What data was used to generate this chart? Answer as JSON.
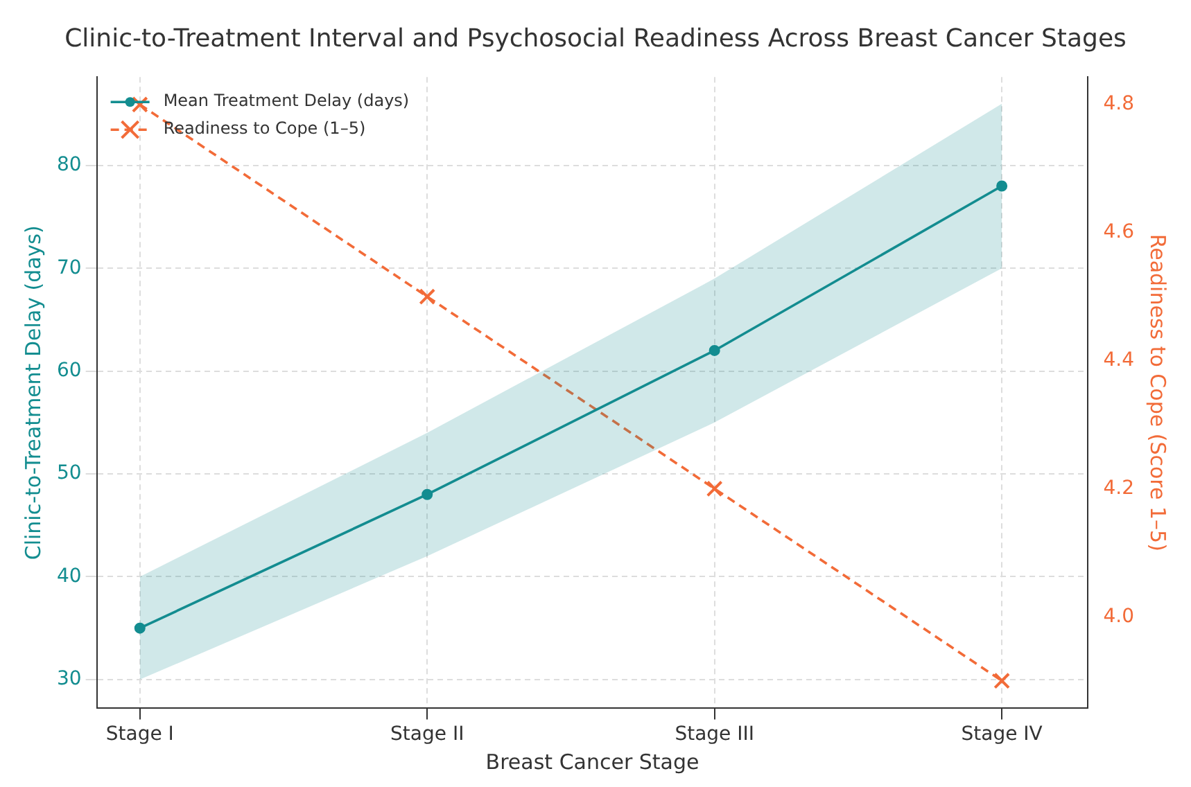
{
  "chart_data": {
    "type": "line",
    "title": "Clinic-to-Treatment Interval and Psychosocial Readiness Across Breast Cancer Stages",
    "xlabel": "Breast Cancer Stage",
    "ylabel": "Clinic-to-Treatment Delay (days)",
    "y2label": "Readiness to Cope (Score 1–5)",
    "categories": [
      "Stage I",
      "Stage II",
      "Stage III",
      "Stage IV"
    ],
    "series": [
      {
        "name": "Mean Treatment Delay (days)",
        "color": "#138d90",
        "values": [
          35,
          48,
          62,
          78
        ],
        "lower": [
          30,
          42,
          55,
          70
        ],
        "upper": [
          40,
          54,
          69,
          86
        ],
        "marker": "circle",
        "line_style": "solid"
      },
      {
        "name": "Readiness to Cope (1–5)",
        "color": "#f26b38",
        "values": [
          4.8,
          4.5,
          4.2,
          3.9
        ],
        "axis": "y2",
        "marker": "cross",
        "line_style": "dashed"
      }
    ],
    "ylim": [
      27.2,
      88.6
    ],
    "yticks": [
      30,
      40,
      50,
      60,
      70,
      80
    ],
    "y2lim": [
      3.857,
      4.843
    ],
    "y2ticks": [
      {
        "value": 4,
        "label": "4.0"
      },
      4.2,
      4.4,
      4.6,
      4.8
    ],
    "grid": true,
    "legend": "top left"
  }
}
